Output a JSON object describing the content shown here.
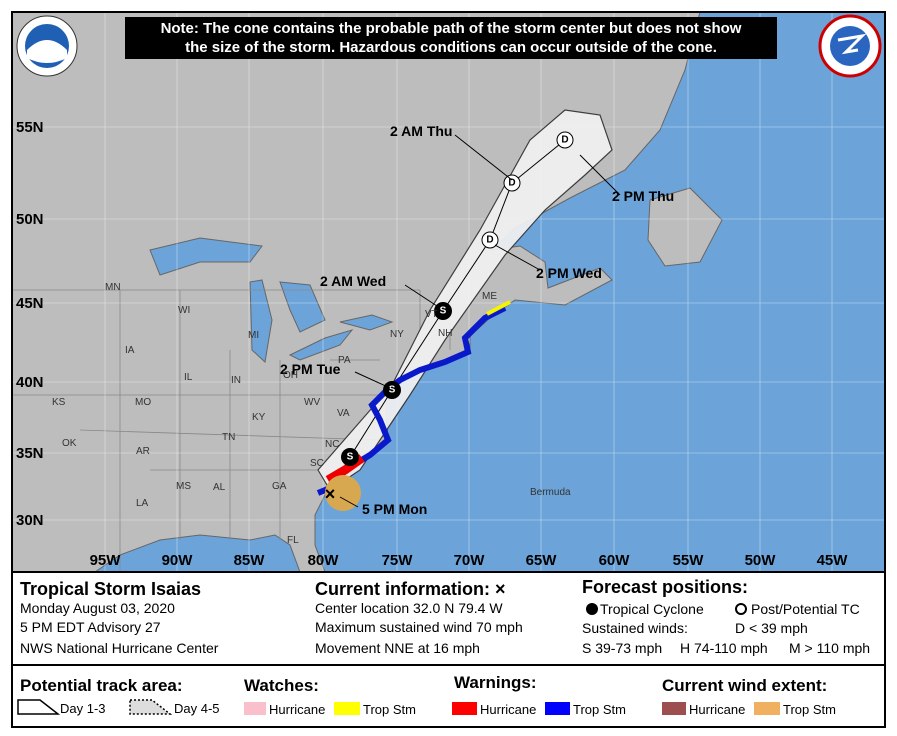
{
  "note": {
    "lines": [
      "Note: The cone contains the probable path of the storm center but does not show",
      "the size of the storm. Hazardous conditions can occur outside of the cone."
    ]
  },
  "latitude_labels": [
    "55N",
    "50N",
    "45N",
    "40N",
    "35N",
    "30N"
  ],
  "longitude_labels": [
    "95W",
    "90W",
    "85W",
    "80W",
    "75W",
    "70W",
    "65W",
    "60W",
    "55W",
    "50W",
    "45W"
  ],
  "region_labels": [
    "MN",
    "WI",
    "MI",
    "IA",
    "IL",
    "IN",
    "OH",
    "KS",
    "MO",
    "KY",
    "WV",
    "VA",
    "PA",
    "NY",
    "VT",
    "NH",
    "ME",
    "TN",
    "NC",
    "OK",
    "AR",
    "MS",
    "AL",
    "GA",
    "SC",
    "LA",
    "FL",
    "Bermuda"
  ],
  "forecast": {
    "times": [
      "2 AM Thu",
      "2 PM Thu",
      "2 PM Wed",
      "2 AM Wed",
      "2 PM Tue",
      "5 PM Mon"
    ],
    "markers": [
      "D",
      "D",
      "D",
      "S",
      "S",
      "S"
    ]
  },
  "storm": {
    "name": "Tropical Storm Isaias",
    "date": "Monday August 03, 2020",
    "advisory": "5 PM EDT Advisory 27",
    "agency": "NWS National Hurricane Center"
  },
  "current": {
    "heading": "Current information: ×",
    "location": "Center location 32.0 N 79.4 W",
    "wind": "Maximum sustained wind 70 mph",
    "movement": "Movement NNE at 16 mph"
  },
  "positions": {
    "heading": "Forecast positions:",
    "tropical": "Tropical Cyclone",
    "post": "Post/Potential TC",
    "winds": "Sustained winds:",
    "d": "D < 39 mph",
    "s": "S 39-73 mph",
    "h": "H 74-110 mph",
    "m": "M > 110 mph"
  },
  "legend": {
    "track": {
      "heading": "Potential track area:",
      "day13": "Day 1-3",
      "day45": "Day 4-5"
    },
    "watches": {
      "heading": "Watches:",
      "hurricane": "Hurricane",
      "trop": "Trop Stm"
    },
    "warnings": {
      "heading": "Warnings:",
      "hurricane": "Hurricane",
      "trop": "Trop Stm"
    },
    "extent": {
      "heading": "Current wind extent:",
      "hurricane": "Hurricane",
      "trop": "Trop Stm"
    }
  }
}
